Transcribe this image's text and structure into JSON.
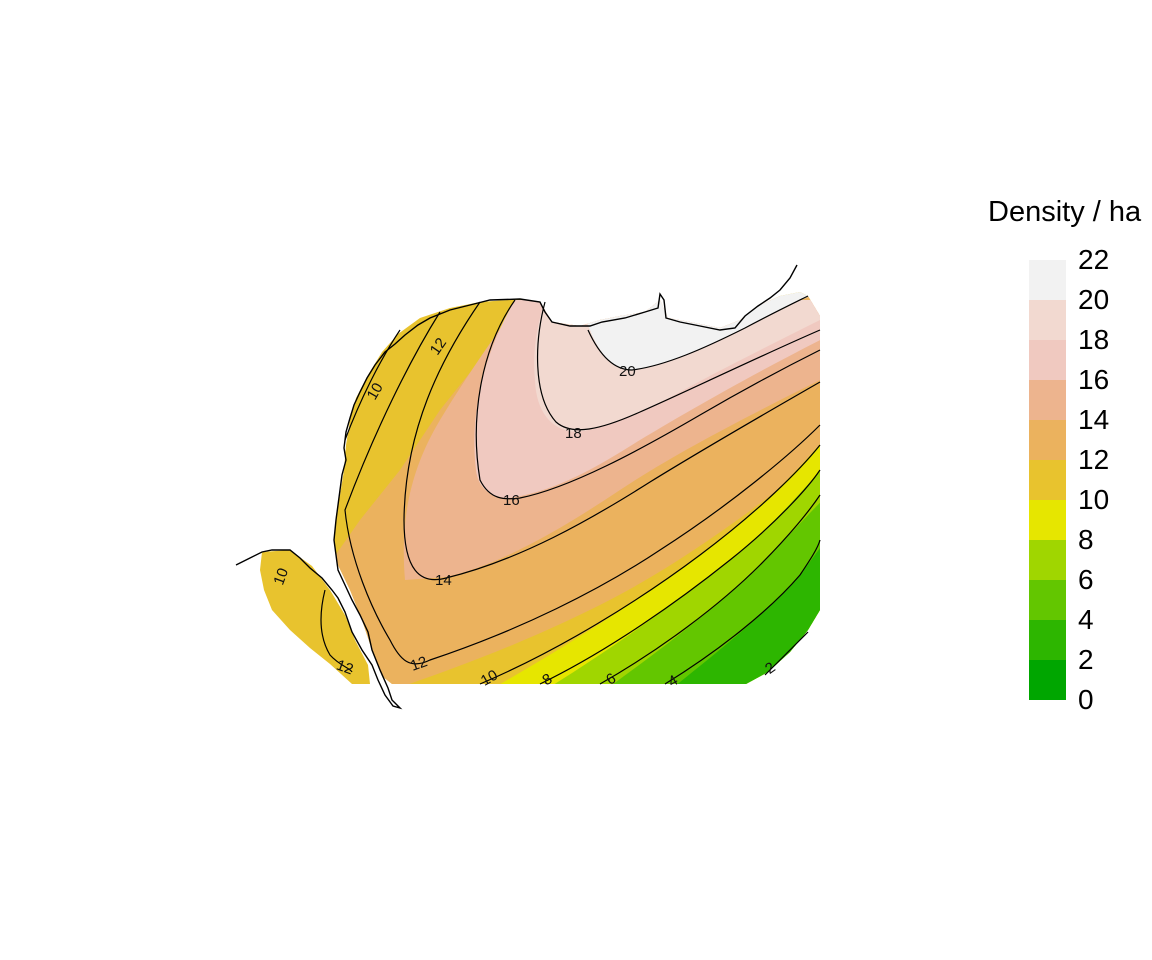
{
  "legend": {
    "title": "Density / ha",
    "levels": [
      {
        "from": 0,
        "to": 2,
        "color": "#00A600"
      },
      {
        "from": 2,
        "to": 4,
        "color": "#2DB600"
      },
      {
        "from": 4,
        "to": 6,
        "color": "#63C600"
      },
      {
        "from": 6,
        "to": 8,
        "color": "#A0D600"
      },
      {
        "from": 8,
        "to": 10,
        "color": "#E6E600"
      },
      {
        "from": 10,
        "to": 12,
        "color": "#E8C32E"
      },
      {
        "from": 12,
        "to": 14,
        "color": "#EBB25E"
      },
      {
        "from": 14,
        "to": 16,
        "color": "#EDB48E"
      },
      {
        "from": 16,
        "to": 18,
        "color": "#F0C9C0"
      },
      {
        "from": 18,
        "to": 20,
        "color": "#F2D9D0"
      },
      {
        "from": 20,
        "to": 22,
        "color": "#F2F2F2"
      }
    ],
    "ticks": [
      "22",
      "20",
      "18",
      "16",
      "14",
      "12",
      "10",
      "8",
      "6",
      "4",
      "2",
      "0"
    ]
  },
  "contour_labels": [
    {
      "value": "20"
    },
    {
      "value": "18"
    },
    {
      "value": "16"
    },
    {
      "value": "14"
    },
    {
      "value": "12"
    },
    {
      "value": "12"
    },
    {
      "value": "12"
    },
    {
      "value": "10"
    },
    {
      "value": "10"
    },
    {
      "value": "10"
    },
    {
      "value": "8"
    },
    {
      "value": "6"
    },
    {
      "value": "4"
    },
    {
      "value": "2"
    }
  ]
}
